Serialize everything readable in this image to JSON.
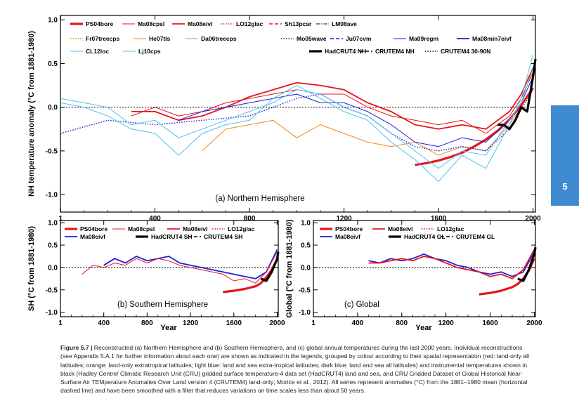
{
  "chart_data": [
    {
      "id": "a",
      "type": "line",
      "panel_label": "(a) Northern Hemisphere",
      "ylabel": "NH temperature anomaly (°C from 1881-1980)",
      "xlabel": "",
      "xlim": [
        0,
        2010
      ],
      "ylim": [
        -1.2,
        1.05
      ],
      "xticks": [
        1,
        400,
        800,
        1200,
        1600,
        2000
      ],
      "yticks": [
        1.0,
        0.5,
        0.0,
        -0.5,
        -1.0
      ],
      "yticklabels": [
        "1.0",
        "0.5",
        "0.0",
        "-0.5",
        "-1.0"
      ],
      "zero_line": true,
      "legend": [
        {
          "name": "PS04bore",
          "color": "#e8141b",
          "style": "thick"
        },
        {
          "name": "Ma08cpsl",
          "color": "#e8141b",
          "style": "solid"
        },
        {
          "name": "Ma08eivl",
          "color": "#e8141b",
          "style": "medium"
        },
        {
          "name": "LO12glac",
          "color": "#e8141b",
          "style": "dotted"
        },
        {
          "name": "Sh13pcar",
          "color": "#e8141b",
          "style": "dashed"
        },
        {
          "name": "LM08ave",
          "color": "#000000",
          "style": "dashdot"
        },
        {
          "name": "Fr07treecps",
          "color": "#f0891c",
          "style": "dotted"
        },
        {
          "name": "He07tls",
          "color": "#f0891c",
          "style": "solid"
        },
        {
          "name": "Da06treecps",
          "color": "#f0891c",
          "style": "solid"
        },
        {
          "name": "Mo05wave",
          "color": "#1d1ed8",
          "style": "dotted"
        },
        {
          "name": "Ju07cvm",
          "color": "#1d1ed8",
          "style": "dashed"
        },
        {
          "name": "Ma09regm",
          "color": "#1d1ed8",
          "style": "solid"
        },
        {
          "name": "Ma08min7eivf",
          "color": "#1d1ed8",
          "style": "medium"
        },
        {
          "name": "CL12loc",
          "color": "#4dc3ea",
          "style": "solid"
        },
        {
          "name": "Lj10cps",
          "color": "#4dc3ea",
          "style": "solid"
        },
        {
          "name": "HadCRUT4 NH",
          "color": "#000000",
          "style": "thick"
        },
        {
          "name": "CRUTEM4 NH",
          "color": "#000000",
          "style": "dashed"
        },
        {
          "name": "CRUTEM4 30-90N",
          "color": "#000000",
          "style": "dotted"
        }
      ],
      "series": [
        {
          "name": "PS04bore",
          "x": [
            1500,
            1550,
            1600,
            1650,
            1700,
            1750,
            1800,
            1850,
            1900,
            1950,
            2000
          ],
          "values": [
            -0.66,
            -0.64,
            -0.61,
            -0.57,
            -0.52,
            -0.45,
            -0.37,
            -0.27,
            -0.14,
            0.02,
            0.22
          ]
        },
        {
          "name": "Ma08eivl",
          "x": [
            300,
            400,
            500,
            600,
            700,
            800,
            900,
            1000,
            1100,
            1200,
            1300,
            1400,
            1500,
            1600,
            1700,
            1800,
            1900,
            1950,
            2000
          ],
          "values": [
            -0.05,
            -0.05,
            -0.15,
            -0.1,
            0.0,
            0.12,
            0.2,
            0.28,
            0.25,
            0.2,
            0.05,
            -0.05,
            -0.2,
            -0.25,
            -0.2,
            -0.25,
            -0.05,
            0.15,
            0.45
          ]
        },
        {
          "name": "Ma08cpsl",
          "x": [
            300,
            400,
            500,
            600,
            700,
            800,
            900,
            1000,
            1100,
            1200,
            1300,
            1400,
            1500,
            1600,
            1700,
            1800,
            1900,
            1950,
            2000
          ],
          "values": [
            -0.1,
            0.0,
            -0.1,
            -0.05,
            0.05,
            0.1,
            0.15,
            0.2,
            0.15,
            0.15,
            0.0,
            -0.1,
            -0.15,
            -0.2,
            -0.15,
            -0.3,
            -0.1,
            0.1,
            0.4
          ]
        },
        {
          "name": "He07tls",
          "x": [
            600,
            700,
            800,
            900,
            1000,
            1100,
            1200,
            1300,
            1400,
            1500,
            1600,
            1700,
            1800,
            1900,
            1950,
            2000
          ],
          "values": [
            -0.5,
            -0.25,
            -0.2,
            -0.15,
            -0.35,
            -0.2,
            -0.3,
            -0.4,
            -0.45,
            -0.4,
            -0.55,
            -0.45,
            -0.5,
            -0.2,
            0.0,
            0.2
          ]
        },
        {
          "name": "Ma09regm",
          "x": [
            500,
            600,
            700,
            800,
            900,
            1000,
            1100,
            1200,
            1300,
            1400,
            1500,
            1600,
            1700,
            1800,
            1900,
            1950,
            2000
          ],
          "values": [
            -0.15,
            -0.05,
            0.0,
            0.05,
            0.1,
            0.15,
            0.05,
            0.05,
            -0.05,
            -0.2,
            -0.4,
            -0.45,
            -0.35,
            -0.4,
            -0.15,
            0.05,
            0.35
          ]
        },
        {
          "name": "Mo05wave",
          "x": [
            1,
            200,
            400,
            600,
            800,
            1000,
            1100,
            1200,
            1300,
            1400,
            1500,
            1600,
            1700,
            1800,
            1900,
            2000
          ],
          "values": [
            -0.3,
            -0.15,
            -0.2,
            -0.15,
            -0.1,
            0.1,
            0.15,
            0.0,
            -0.1,
            -0.3,
            -0.45,
            -0.5,
            -0.45,
            -0.5,
            -0.25,
            0.2
          ]
        },
        {
          "name": "Lj10cps",
          "x": [
            1,
            100,
            200,
            300,
            400,
            500,
            600,
            700,
            800,
            900,
            1000,
            1100,
            1200,
            1300,
            1400,
            1500,
            1600,
            1700,
            1800,
            1900,
            1950,
            2000
          ],
          "values": [
            0.05,
            0.0,
            -0.1,
            -0.25,
            -0.3,
            -0.55,
            -0.3,
            -0.2,
            -0.15,
            0.1,
            0.25,
            0.1,
            -0.05,
            -0.15,
            -0.4,
            -0.6,
            -0.85,
            -0.55,
            -0.7,
            -0.2,
            0.1,
            0.6
          ]
        },
        {
          "name": "CL12loc",
          "x": [
            1,
            100,
            200,
            300,
            400,
            500,
            600,
            700,
            800,
            900,
            1000,
            1100,
            1200,
            1300,
            1400,
            1500,
            1600,
            1700,
            1800,
            1900,
            1950,
            2000
          ],
          "values": [
            0.1,
            0.05,
            0.0,
            -0.2,
            -0.15,
            -0.35,
            -0.25,
            -0.15,
            -0.05,
            0.05,
            0.2,
            0.15,
            0.0,
            -0.1,
            -0.3,
            -0.5,
            -0.7,
            -0.5,
            -0.55,
            -0.15,
            0.05,
            0.45
          ]
        },
        {
          "name": "HadCRUT4 NH",
          "x": [
            1850,
            1875,
            1900,
            1925,
            1950,
            1975,
            2000,
            2010
          ],
          "values": [
            -0.2,
            -0.2,
            -0.25,
            -0.15,
            0.0,
            -0.05,
            0.35,
            0.55
          ]
        }
      ]
    },
    {
      "id": "b",
      "type": "line",
      "panel_label": "(b) Southern Hemisphere",
      "ylabel": "SH (°C from 1881-1980)",
      "xlabel": "Year",
      "xlim": [
        0,
        2010
      ],
      "ylim": [
        -1.1,
        1.05
      ],
      "xticks": [
        1,
        400,
        800,
        1200,
        1600,
        2000
      ],
      "yticks": [
        1.0,
        0.5,
        0.0,
        -0.5,
        -1.0
      ],
      "yticklabels": [
        "1.0",
        "0.5",
        "0.0",
        "-0.5",
        "-1.0"
      ],
      "zero_line": true,
      "legend": [
        {
          "name": "PS04bore",
          "color": "#e8141b",
          "style": "thick"
        },
        {
          "name": "Ma08cpsl",
          "color": "#e8141b",
          "style": "solid"
        },
        {
          "name": "Ma08eivl",
          "color": "#e8141b",
          "style": "medium"
        },
        {
          "name": "LO12glac",
          "color": "#e8141b",
          "style": "dotted"
        },
        {
          "name": "Ma08eivf",
          "color": "#1d1ed8",
          "style": "medium"
        },
        {
          "name": "HadCRUT4 SH",
          "color": "#000000",
          "style": "thick"
        },
        {
          "name": "CRUTEM4 SH",
          "color": "#000000",
          "style": "dashed"
        }
      ],
      "series": [
        {
          "name": "PS04bore",
          "x": [
            1500,
            1600,
            1700,
            1800,
            1850,
            1900,
            1950,
            2000
          ],
          "values": [
            -0.55,
            -0.52,
            -0.48,
            -0.42,
            -0.35,
            -0.22,
            -0.05,
            0.18
          ]
        },
        {
          "name": "Ma08eivf",
          "x": [
            400,
            500,
            600,
            700,
            800,
            900,
            1000,
            1100,
            1200,
            1300,
            1400,
            1500,
            1600,
            1700,
            1800,
            1900,
            2000
          ],
          "values": [
            0.05,
            0.2,
            0.1,
            0.25,
            0.15,
            0.2,
            0.25,
            0.1,
            0.05,
            0.0,
            -0.05,
            -0.1,
            -0.15,
            -0.2,
            -0.25,
            -0.1,
            0.4
          ]
        },
        {
          "name": "Ma08cpsl",
          "x": [
            200,
            300,
            400,
            500,
            600,
            700,
            800,
            900,
            1000,
            1100,
            1200,
            1300,
            1400,
            1500,
            1600,
            1700,
            1800,
            1900,
            2000
          ],
          "values": [
            -0.15,
            0.05,
            0.0,
            0.1,
            0.05,
            0.2,
            0.1,
            0.2,
            0.15,
            0.05,
            0.0,
            -0.05,
            -0.1,
            -0.15,
            -0.3,
            -0.25,
            -0.35,
            -0.1,
            0.35
          ]
        },
        {
          "name": "HadCRUT4 SH",
          "x": [
            1850,
            1900,
            1950,
            2000,
            2010
          ],
          "values": [
            -0.25,
            -0.3,
            -0.1,
            0.2,
            0.35
          ]
        }
      ]
    },
    {
      "id": "c",
      "type": "line",
      "panel_label": "(c) Global",
      "ylabel": "Global (°C from 1881-1980)",
      "xlabel": "Year",
      "xlim": [
        0,
        2010
      ],
      "ylim": [
        -1.1,
        1.05
      ],
      "xticks": [
        1,
        400,
        800,
        1200,
        1600,
        2000
      ],
      "yticks": [
        1.0,
        0.5,
        0.0,
        -0.5,
        -1.0
      ],
      "yticklabels": [
        "1.0",
        "0.5",
        "0.0",
        "-0.5",
        "-1.0"
      ],
      "zero_line": true,
      "legend": [
        {
          "name": "PS04bore",
          "color": "#e8141b",
          "style": "thick"
        },
        {
          "name": "Ma08eivl",
          "color": "#e8141b",
          "style": "medium"
        },
        {
          "name": "LO12glac",
          "color": "#e8141b",
          "style": "dotted"
        },
        {
          "name": "Ma08eivf",
          "color": "#1d1ed8",
          "style": "medium"
        },
        {
          "name": "HadCRUT4 GL",
          "color": "#000000",
          "style": "thick"
        },
        {
          "name": "CRUTEM4 GL",
          "color": "#000000",
          "style": "dashed"
        }
      ],
      "series": [
        {
          "name": "PS04bore",
          "x": [
            1500,
            1600,
            1700,
            1800,
            1850,
            1900,
            1950,
            2000
          ],
          "values": [
            -0.6,
            -0.57,
            -0.52,
            -0.44,
            -0.37,
            -0.25,
            -0.07,
            0.2
          ]
        },
        {
          "name": "Ma08eivf",
          "x": [
            500,
            600,
            700,
            800,
            900,
            1000,
            1100,
            1200,
            1300,
            1400,
            1500,
            1600,
            1700,
            1800,
            1900,
            2000
          ],
          "values": [
            0.15,
            0.1,
            0.2,
            0.15,
            0.2,
            0.3,
            0.2,
            0.15,
            0.05,
            0.0,
            -0.1,
            -0.15,
            -0.1,
            -0.2,
            -0.1,
            0.35
          ]
        },
        {
          "name": "Ma08eivl",
          "x": [
            500,
            600,
            700,
            800,
            900,
            1000,
            1100,
            1200,
            1300,
            1400,
            1500,
            1600,
            1700,
            1800,
            1900,
            2000
          ],
          "values": [
            0.1,
            0.1,
            0.15,
            0.2,
            0.15,
            0.25,
            0.2,
            0.1,
            0.0,
            -0.05,
            -0.1,
            -0.2,
            -0.15,
            -0.25,
            -0.05,
            0.4
          ]
        },
        {
          "name": "HadCRUT4 GL",
          "x": [
            1850,
            1900,
            1950,
            2000,
            2010
          ],
          "values": [
            -0.25,
            -0.3,
            -0.05,
            0.3,
            0.45
          ]
        }
      ]
    }
  ],
  "caption": {
    "label": "Figure 5.7 |",
    "text": "Reconstructed (a) Northern Hemisphere and (b) Southern Hemisphere, and (c) global annual temperatures during the last 2000 years. Individual reconstructions (see Appendix 5.A.1 for further information about each one) are shown as indicated in the legends, grouped by colour according to their spatial representation (red: land-only all latitudes; orange: land-only extratropical latitudes; light blue: land and sea extra-tropical latitudes; dark blue: land and sea all latitudes) and instrumental temperatures shown in black (Hadley Centre/ Climatic Research Unit (CRU) gridded surface temperature-4 data set (HadCRUT4) land and sea, and CRU Gridded Dataset of Global Historical Near-Surface Air TEMperature Anomalies Over Land version 4 (CRUTEM4) land-only; Morice et al., 2012). All series represent anomalies (°C) from the 1881–1980 mean (horizontal dashed line) and have been smoothed with a filter that reduces variations on time scales less than about 50 years."
  },
  "chapter_tab": {
    "number": "5",
    "color": "#3f8bd1"
  },
  "colors": {
    "red": "#e8141b",
    "orange": "#f0891c",
    "light_blue": "#4dc3ea",
    "dark_blue": "#1d1ed8",
    "black": "#000000"
  }
}
